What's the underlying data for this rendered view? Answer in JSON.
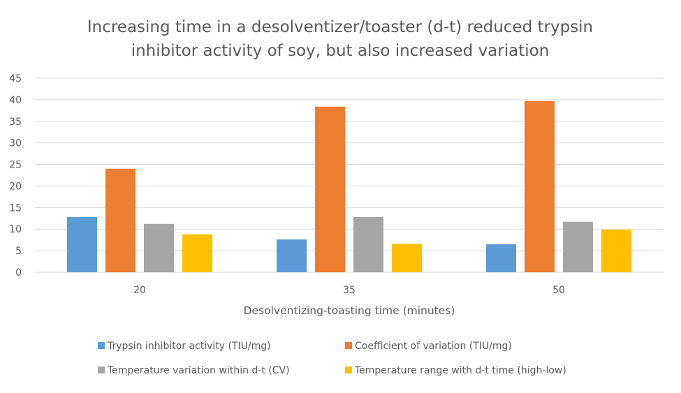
{
  "chart_data": {
    "type": "bar",
    "title_lines": [
      "Increasing time in a desolventizer/toaster (d-t) reduced trypsin",
      "inhibitor activity of soy, but also increased variation"
    ],
    "xlabel": "Desolventizing-toasting time (minutes)",
    "ylabel": "",
    "categories": [
      "20",
      "35",
      "50"
    ],
    "ylim": [
      0,
      45
    ],
    "yticks": [
      "0",
      "5",
      "10",
      "15",
      "20",
      "25",
      "30",
      "35",
      "40",
      "45"
    ],
    "ytick_values": [
      0,
      5,
      10,
      15,
      20,
      25,
      30,
      35,
      40,
      45
    ],
    "grid": true,
    "legend_position": "bottom",
    "series": [
      {
        "name": "Trypsin inhibitor activity (TIU/mg)",
        "color": "#5B9BD5",
        "values": [
          12.8,
          7.6,
          6.5
        ]
      },
      {
        "name": "Coefficient of variation (TIU/mg)",
        "color": "#ED7D31",
        "values": [
          24.0,
          38.4,
          39.7
        ]
      },
      {
        "name": "Temperature variation within d-t (CV)",
        "color": "#A5A5A5",
        "values": [
          11.2,
          12.8,
          11.7
        ]
      },
      {
        "name": "Temperature range with d-t time (high-low)",
        "color": "#FFC000",
        "values": [
          8.8,
          6.6,
          9.9
        ]
      }
    ]
  }
}
